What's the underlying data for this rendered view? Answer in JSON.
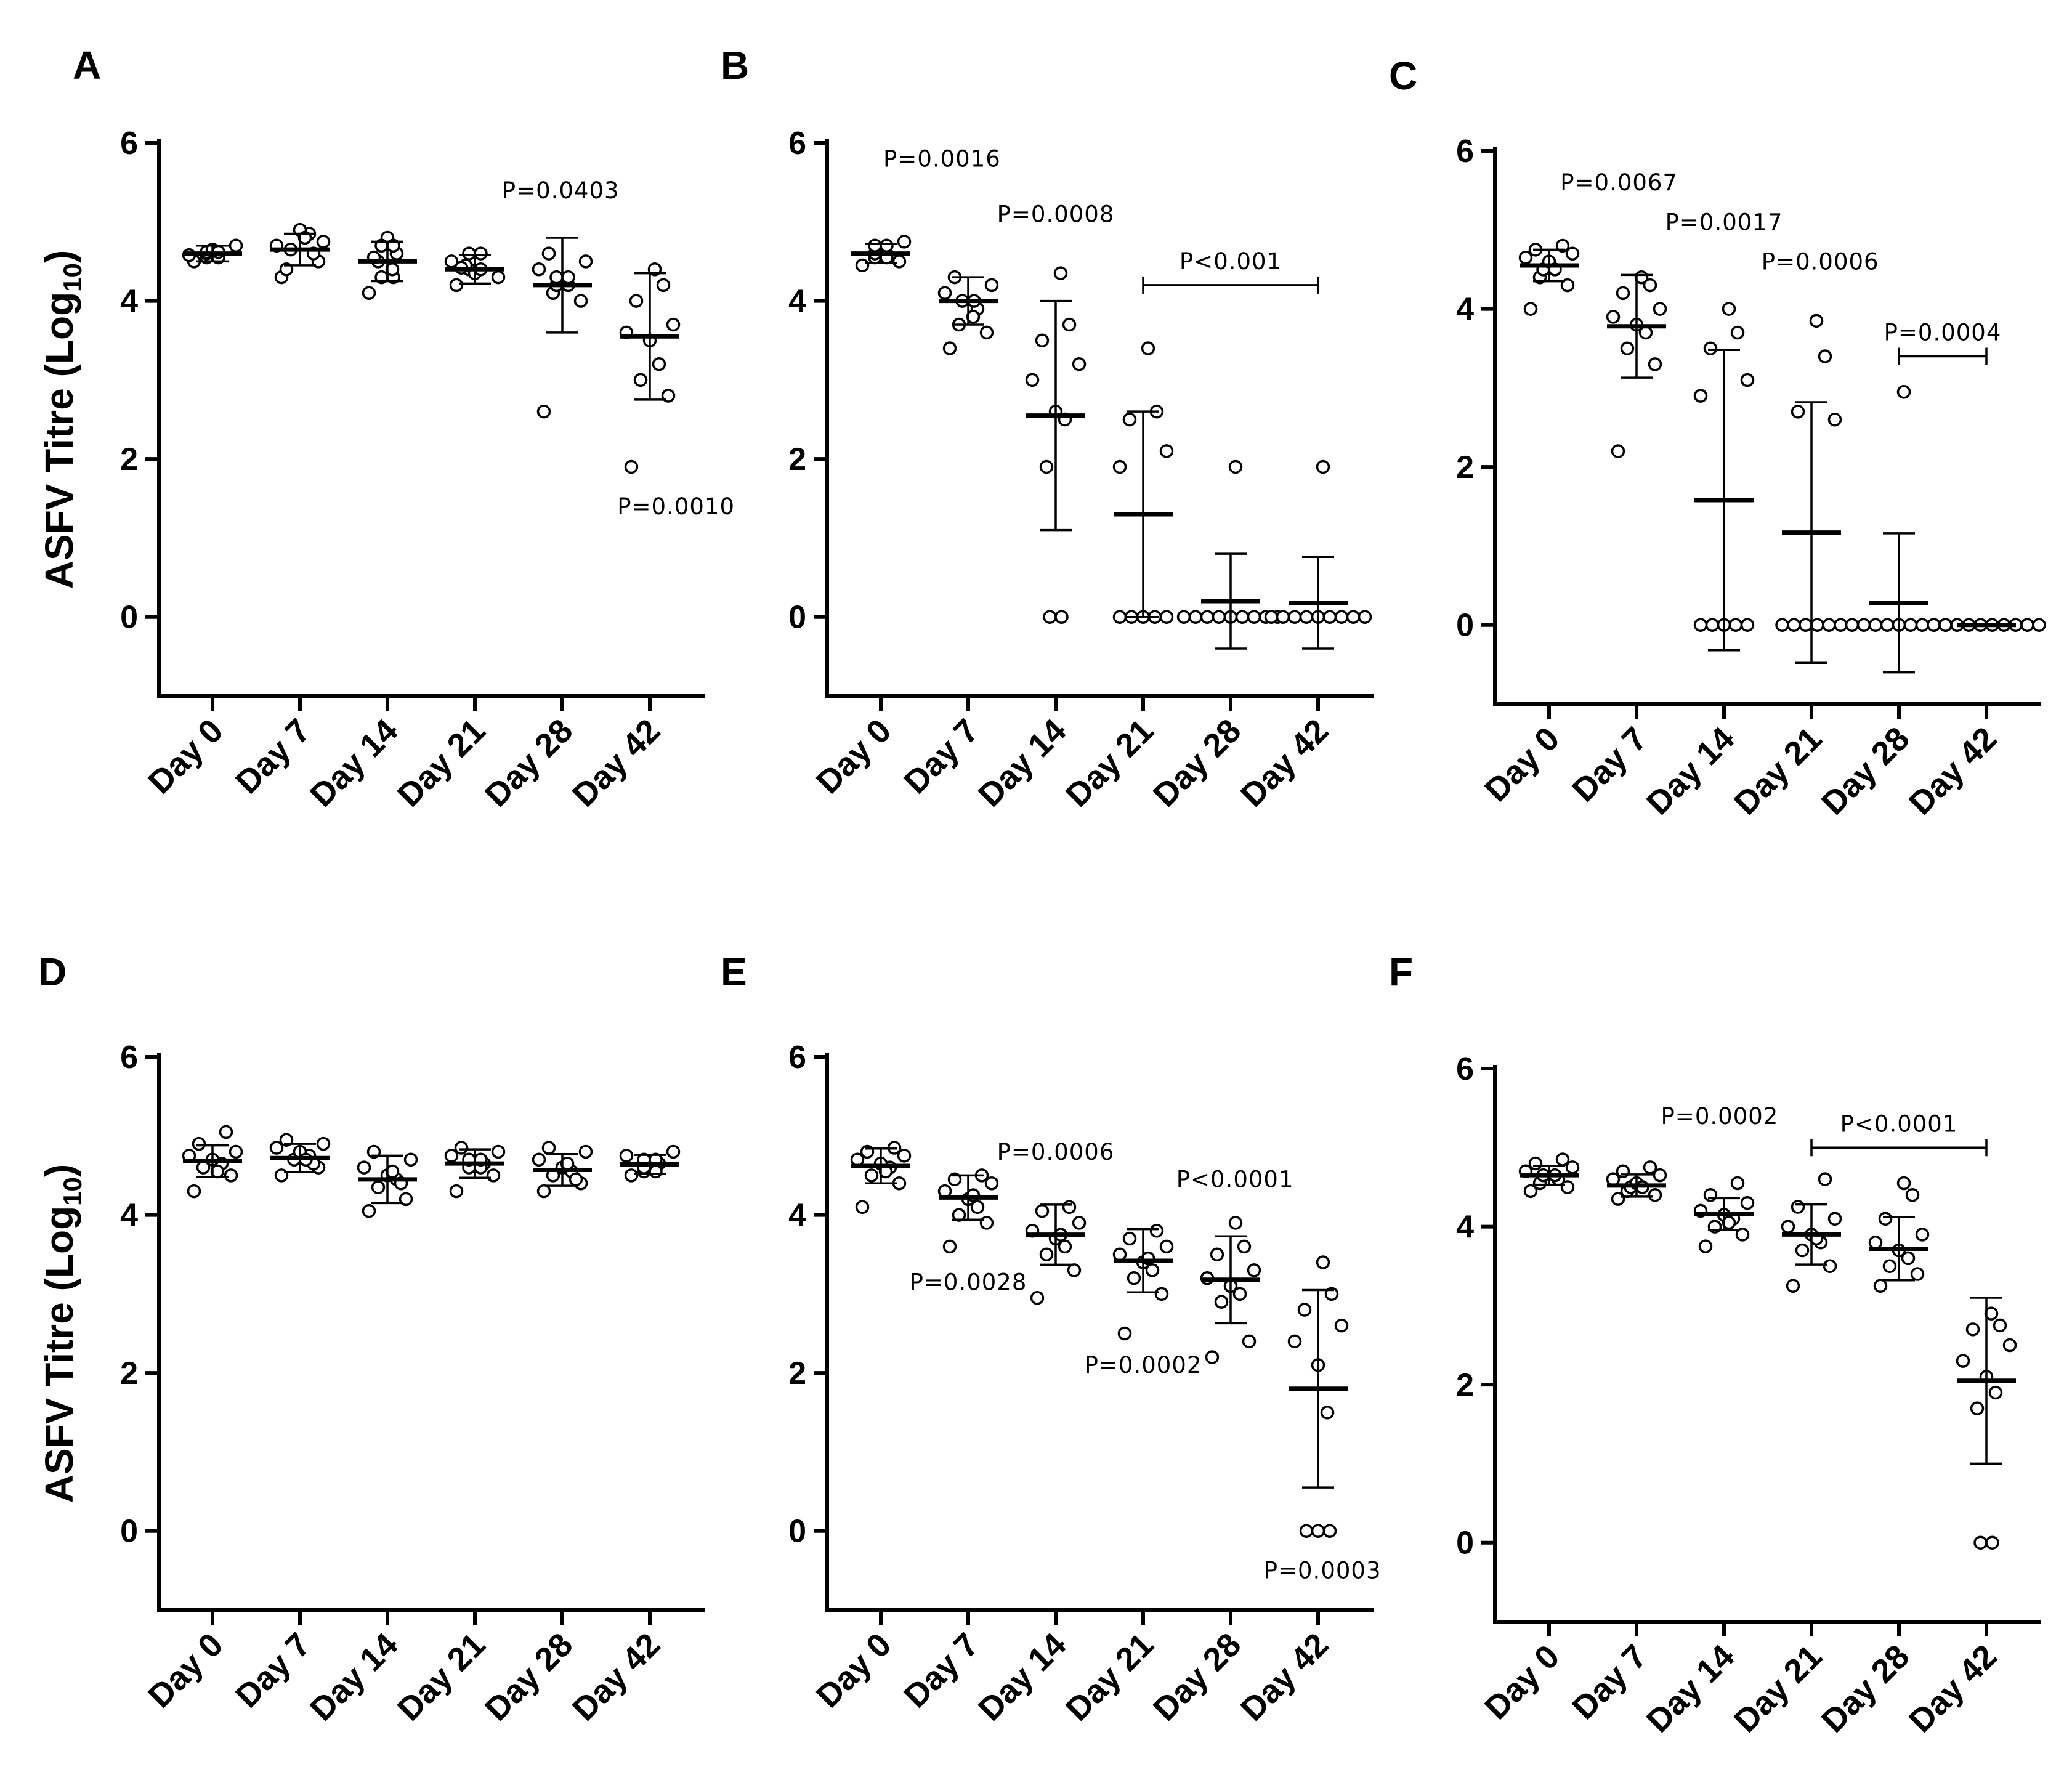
{
  "figure": {
    "y_axis_label_main": "ASFV Titre  (Log",
    "y_axis_label_sub": "10",
    "y_axis_label_close": ")"
  },
  "chart_data": [
    {
      "panel": "A",
      "type": "scatter",
      "categories": [
        "Day 0",
        "Day 7",
        "Day 14",
        "Day 21",
        "Day 28",
        "Day 42"
      ],
      "ylim": [
        -1,
        6
      ],
      "yticks": [
        0,
        2,
        4,
        6
      ],
      "ylabel": "ASFV Titre (Log10)",
      "means": [
        4.6,
        4.65,
        4.5,
        4.4,
        4.2,
        3.55
      ],
      "sd": [
        0.1,
        0.2,
        0.25,
        0.18,
        0.6,
        0.8
      ],
      "points": [
        [
          4.5,
          4.55,
          4.6,
          4.62,
          4.65,
          4.58,
          4.7,
          4.6,
          4.55,
          4.62
        ],
        [
          4.3,
          4.5,
          4.65,
          4.85,
          4.9,
          4.7,
          4.75,
          4.4,
          4.6,
          4.8
        ],
        [
          4.1,
          4.3,
          4.5,
          4.6,
          4.8,
          4.7,
          4.3,
          4.55,
          4.7,
          4.4
        ],
        [
          4.2,
          4.4,
          4.45,
          4.6,
          4.35,
          4.5,
          4.3,
          4.42,
          4.4,
          4.6
        ],
        [
          2.6,
          4.0,
          4.1,
          4.2,
          4.3,
          4.4,
          4.5,
          4.6,
          4.2,
          4.3
        ],
        [
          1.9,
          2.8,
          3.0,
          3.2,
          3.5,
          3.6,
          3.7,
          4.0,
          4.2,
          4.4
        ]
      ],
      "brackets": [],
      "annotations": [
        {
          "text": "P=0.0403",
          "category_index": 4,
          "y": 5.3,
          "dx": -0.02
        },
        {
          "text": "P=0.0010",
          "category_index": 5,
          "y": 1.3,
          "dx": 0.3
        }
      ]
    },
    {
      "panel": "B",
      "type": "scatter",
      "categories": [
        "Day 0",
        "Day 7",
        "Day 14",
        "Day 21",
        "Day 28",
        "Day 42"
      ],
      "ylim": [
        -1,
        6
      ],
      "yticks": [
        0,
        2,
        4,
        6
      ],
      "ylabel": "",
      "means": [
        4.6,
        4.0,
        2.55,
        1.3,
        0.2,
        0.18
      ],
      "sd": [
        0.12,
        0.3,
        1.45,
        1.3,
        0.6,
        0.58
      ],
      "points": [
        [
          4.45,
          4.5,
          4.55,
          4.6,
          4.65,
          4.7,
          4.75,
          4.6,
          4.55,
          4.7
        ],
        [
          3.4,
          3.6,
          3.7,
          3.9,
          4.0,
          4.1,
          4.2,
          4.3,
          4.0,
          3.8
        ],
        [
          0,
          0,
          1.9,
          2.5,
          2.6,
          3.0,
          3.2,
          3.5,
          3.7,
          4.35
        ],
        [
          0,
          0,
          0,
          0,
          0,
          1.9,
          2.1,
          2.5,
          2.6,
          3.4
        ],
        [
          0,
          0,
          0,
          0,
          0,
          0,
          0,
          0,
          0,
          1.9
        ],
        [
          0,
          0,
          0,
          0,
          0,
          0,
          0,
          0,
          0,
          1.9
        ]
      ],
      "brackets": [
        {
          "text": "P<0.001",
          "from_index": 3,
          "to_index": 5,
          "y": 4.2
        }
      ],
      "annotations": [
        {
          "text": "P=0.0016",
          "category_index": 1,
          "y": 5.7,
          "dx": -0.3
        },
        {
          "text": "P=0.0008",
          "category_index": 2,
          "y": 5.0,
          "dx": 0.0
        }
      ]
    },
    {
      "panel": "C",
      "type": "scatter",
      "categories": [
        "Day 0",
        "Day 7",
        "Day 14",
        "Day 21",
        "Day 28",
        "Day 42"
      ],
      "ylim": [
        -1,
        6
      ],
      "yticks": [
        0,
        2,
        4,
        6
      ],
      "ylabel": "",
      "means": [
        4.55,
        3.78,
        1.58,
        1.17,
        0.28,
        0.0
      ],
      "sd": [
        0.2,
        0.65,
        1.9,
        1.65,
        0.88,
        0
      ],
      "points": [
        [
          4.0,
          4.3,
          4.4,
          4.5,
          4.6,
          4.65,
          4.7,
          4.75,
          4.8,
          4.5
        ],
        [
          2.2,
          3.3,
          3.5,
          3.7,
          3.8,
          3.9,
          4.0,
          4.2,
          4.3,
          4.4
        ],
        [
          0,
          0,
          0,
          0,
          0,
          2.9,
          3.1,
          3.5,
          3.7,
          4.0
        ],
        [
          0,
          0,
          0,
          0,
          0,
          0,
          2.6,
          2.7,
          3.4,
          3.85
        ],
        [
          0,
          0,
          0,
          0,
          0,
          0,
          0,
          0,
          0,
          2.95
        ],
        [
          0,
          0,
          0,
          0,
          0,
          0,
          0,
          0,
          0,
          0
        ]
      ],
      "brackets": [
        {
          "text": "P=0.0004",
          "from_index": 4,
          "to_index": 5,
          "y": 3.4
        }
      ],
      "annotations": [
        {
          "text": "P=0.0067",
          "category_index": 1,
          "y": 5.5,
          "dx": -0.2
        },
        {
          "text": "P=0.0017",
          "category_index": 2,
          "y": 5.0,
          "dx": 0.0
        },
        {
          "text": "P=0.0006",
          "category_index": 3,
          "y": 4.5,
          "dx": 0.1
        }
      ]
    },
    {
      "panel": "D",
      "type": "scatter",
      "categories": [
        "Day 0",
        "Day 7",
        "Day 14",
        "Day 21",
        "Day 28",
        "Day 42"
      ],
      "ylim": [
        -1,
        6
      ],
      "yticks": [
        0,
        2,
        4,
        6
      ],
      "ylabel": "ASFV Titre (Log10)",
      "means": [
        4.68,
        4.72,
        4.45,
        4.65,
        4.57,
        4.64
      ],
      "sd": [
        0.2,
        0.18,
        0.3,
        0.18,
        0.2,
        0.12
      ],
      "points": [
        [
          4.3,
          4.5,
          4.6,
          4.65,
          4.7,
          4.75,
          4.8,
          4.9,
          5.05,
          4.55
        ],
        [
          4.5,
          4.6,
          4.7,
          4.75,
          4.8,
          4.85,
          4.9,
          4.95,
          4.65,
          4.7
        ],
        [
          4.05,
          4.2,
          4.35,
          4.45,
          4.5,
          4.6,
          4.7,
          4.8,
          4.4,
          4.55
        ],
        [
          4.3,
          4.5,
          4.6,
          4.65,
          4.7,
          4.75,
          4.8,
          4.85,
          4.6,
          4.7
        ],
        [
          4.3,
          4.4,
          4.5,
          4.55,
          4.6,
          4.7,
          4.8,
          4.85,
          4.45,
          4.65
        ],
        [
          4.5,
          4.55,
          4.6,
          4.65,
          4.7,
          4.75,
          4.8,
          4.6,
          4.55,
          4.7
        ]
      ],
      "brackets": [],
      "annotations": []
    },
    {
      "panel": "E",
      "type": "scatter",
      "categories": [
        "Day 0",
        "Day 7",
        "Day 14",
        "Day 21",
        "Day 28",
        "Day 42"
      ],
      "ylim": [
        -1,
        6
      ],
      "yticks": [
        0,
        2,
        4,
        6
      ],
      "ylabel": "",
      "means": [
        4.62,
        4.22,
        3.75,
        3.42,
        3.18,
        1.8
      ],
      "sd": [
        0.22,
        0.28,
        0.38,
        0.4,
        0.55,
        1.25
      ],
      "points": [
        [
          4.1,
          4.4,
          4.5,
          4.6,
          4.65,
          4.7,
          4.75,
          4.8,
          4.85,
          4.55
        ],
        [
          3.6,
          3.9,
          4.0,
          4.1,
          4.2,
          4.3,
          4.4,
          4.45,
          4.5,
          4.25
        ],
        [
          2.95,
          3.3,
          3.5,
          3.6,
          3.7,
          3.8,
          3.9,
          4.05,
          4.1,
          3.75
        ],
        [
          2.5,
          3.0,
          3.2,
          3.3,
          3.4,
          3.5,
          3.6,
          3.7,
          3.8,
          3.45
        ],
        [
          2.2,
          2.4,
          2.9,
          3.0,
          3.1,
          3.2,
          3.3,
          3.5,
          3.6,
          3.9
        ],
        [
          0,
          0,
          0,
          1.5,
          2.1,
          2.4,
          2.6,
          2.8,
          3.0,
          3.4
        ]
      ],
      "brackets": [],
      "annotations": [
        {
          "text": "P=0.0006",
          "category_index": 2,
          "y": 4.7,
          "dx": 0.0
        },
        {
          "text": "P=0.0028",
          "category_index": 1,
          "y": 3.05,
          "dx": 0.0
        },
        {
          "text": "P=0.0002",
          "category_index": 3,
          "y": 2.0,
          "dx": 0.0
        },
        {
          "text": "P<0.0001",
          "category_index": 4,
          "y": 4.35,
          "dx": 0.05
        },
        {
          "text": "P=0.0003",
          "category_index": 5,
          "y": -0.6,
          "dx": 0.05
        }
      ]
    },
    {
      "panel": "F",
      "type": "scatter",
      "categories": [
        "Day 0",
        "Day 7",
        "Day 14",
        "Day 21",
        "Day 28",
        "Day 42"
      ],
      "ylim": [
        -1,
        6
      ],
      "yticks": [
        0,
        2,
        4,
        6
      ],
      "ylabel": "",
      "means": [
        4.65,
        4.52,
        4.16,
        3.9,
        3.72,
        2.05
      ],
      "sd": [
        0.12,
        0.14,
        0.2,
        0.38,
        0.4,
        1.05
      ],
      "points": [
        [
          4.45,
          4.5,
          4.55,
          4.6,
          4.65,
          4.7,
          4.75,
          4.8,
          4.85,
          4.65
        ],
        [
          4.35,
          4.4,
          4.45,
          4.5,
          4.55,
          4.6,
          4.65,
          4.7,
          4.75,
          4.5
        ],
        [
          3.75,
          3.9,
          4.0,
          4.1,
          4.15,
          4.2,
          4.3,
          4.4,
          4.55,
          4.05
        ],
        [
          3.25,
          3.5,
          3.7,
          3.8,
          3.9,
          4.0,
          4.1,
          4.25,
          4.6,
          3.85
        ],
        [
          3.25,
          3.4,
          3.5,
          3.6,
          3.7,
          3.8,
          3.9,
          4.1,
          4.4,
          4.55
        ],
        [
          0,
          0,
          1.7,
          1.9,
          2.1,
          2.3,
          2.5,
          2.7,
          2.75,
          2.9
        ]
      ],
      "brackets": [
        {
          "text": "P<0.0001",
          "from_index": 3,
          "to_index": 5,
          "y": 5.0
        }
      ],
      "annotations": [
        {
          "text": "P=0.0002",
          "category_index": 2,
          "y": 5.3,
          "dx": -0.05
        }
      ]
    }
  ]
}
